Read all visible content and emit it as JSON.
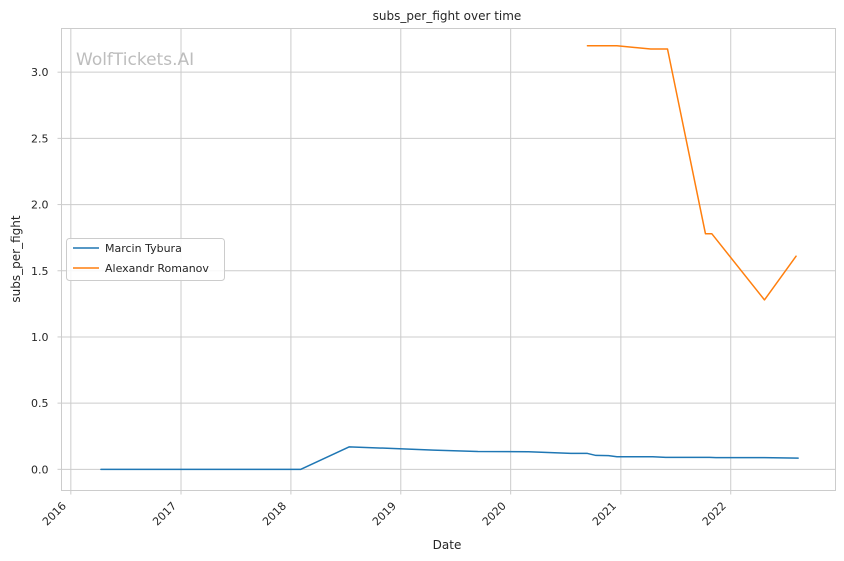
{
  "watermark": "WolfTickets.AI",
  "chart_data": {
    "type": "line",
    "title": "subs_per_fight over time",
    "xlabel": "Date",
    "ylabel": "subs_per_fight",
    "xlim": [
      "2015-12-01",
      "2022-12-15"
    ],
    "ylim": [
      -0.16,
      3.33
    ],
    "x_ticks": [
      "2016-01-01",
      "2017-01-01",
      "2018-01-01",
      "2019-01-01",
      "2020-01-01",
      "2021-01-01",
      "2022-01-01"
    ],
    "x_tick_labels": [
      "2016",
      "2017",
      "2018",
      "2019",
      "2020",
      "2021",
      "2022"
    ],
    "y_ticks": [
      0.0,
      0.5,
      1.0,
      1.5,
      2.0,
      2.5,
      3.0
    ],
    "y_tick_labels": [
      "0.0",
      "0.5",
      "1.0",
      "1.5",
      "2.0",
      "2.5",
      "3.0"
    ],
    "grid": true,
    "legend_position": "center-left",
    "series": [
      {
        "name": "Marcin Tybura",
        "color": "#1f77b4",
        "points": [
          [
            "2016-04-10",
            0.0
          ],
          [
            "2018-02-03",
            0.0
          ],
          [
            "2018-07-14",
            0.17
          ],
          [
            "2019-04-20",
            0.145
          ],
          [
            "2019-09-14",
            0.135
          ],
          [
            "2020-02-29",
            0.133
          ],
          [
            "2020-07-19",
            0.12
          ],
          [
            "2020-09-12",
            0.12
          ],
          [
            "2020-10-10",
            0.105
          ],
          [
            "2020-11-21",
            0.103
          ],
          [
            "2020-12-19",
            0.095
          ],
          [
            "2021-04-17",
            0.095
          ],
          [
            "2021-05-30",
            0.09
          ],
          [
            "2021-10-23",
            0.09
          ],
          [
            "2021-11-13",
            0.088
          ],
          [
            "2022-04-23",
            0.088
          ],
          [
            "2022-08-13",
            0.085
          ]
        ]
      },
      {
        "name": "Alexandr Romanov",
        "color": "#ff7f0e",
        "points": [
          [
            "2020-09-12",
            3.2
          ],
          [
            "2020-12-19",
            3.2
          ],
          [
            "2021-04-10",
            3.175
          ],
          [
            "2021-06-05",
            3.175
          ],
          [
            "2021-10-09",
            1.78
          ],
          [
            "2021-10-30",
            1.78
          ],
          [
            "2022-04-23",
            1.28
          ],
          [
            "2022-08-06",
            1.61
          ]
        ]
      }
    ]
  }
}
